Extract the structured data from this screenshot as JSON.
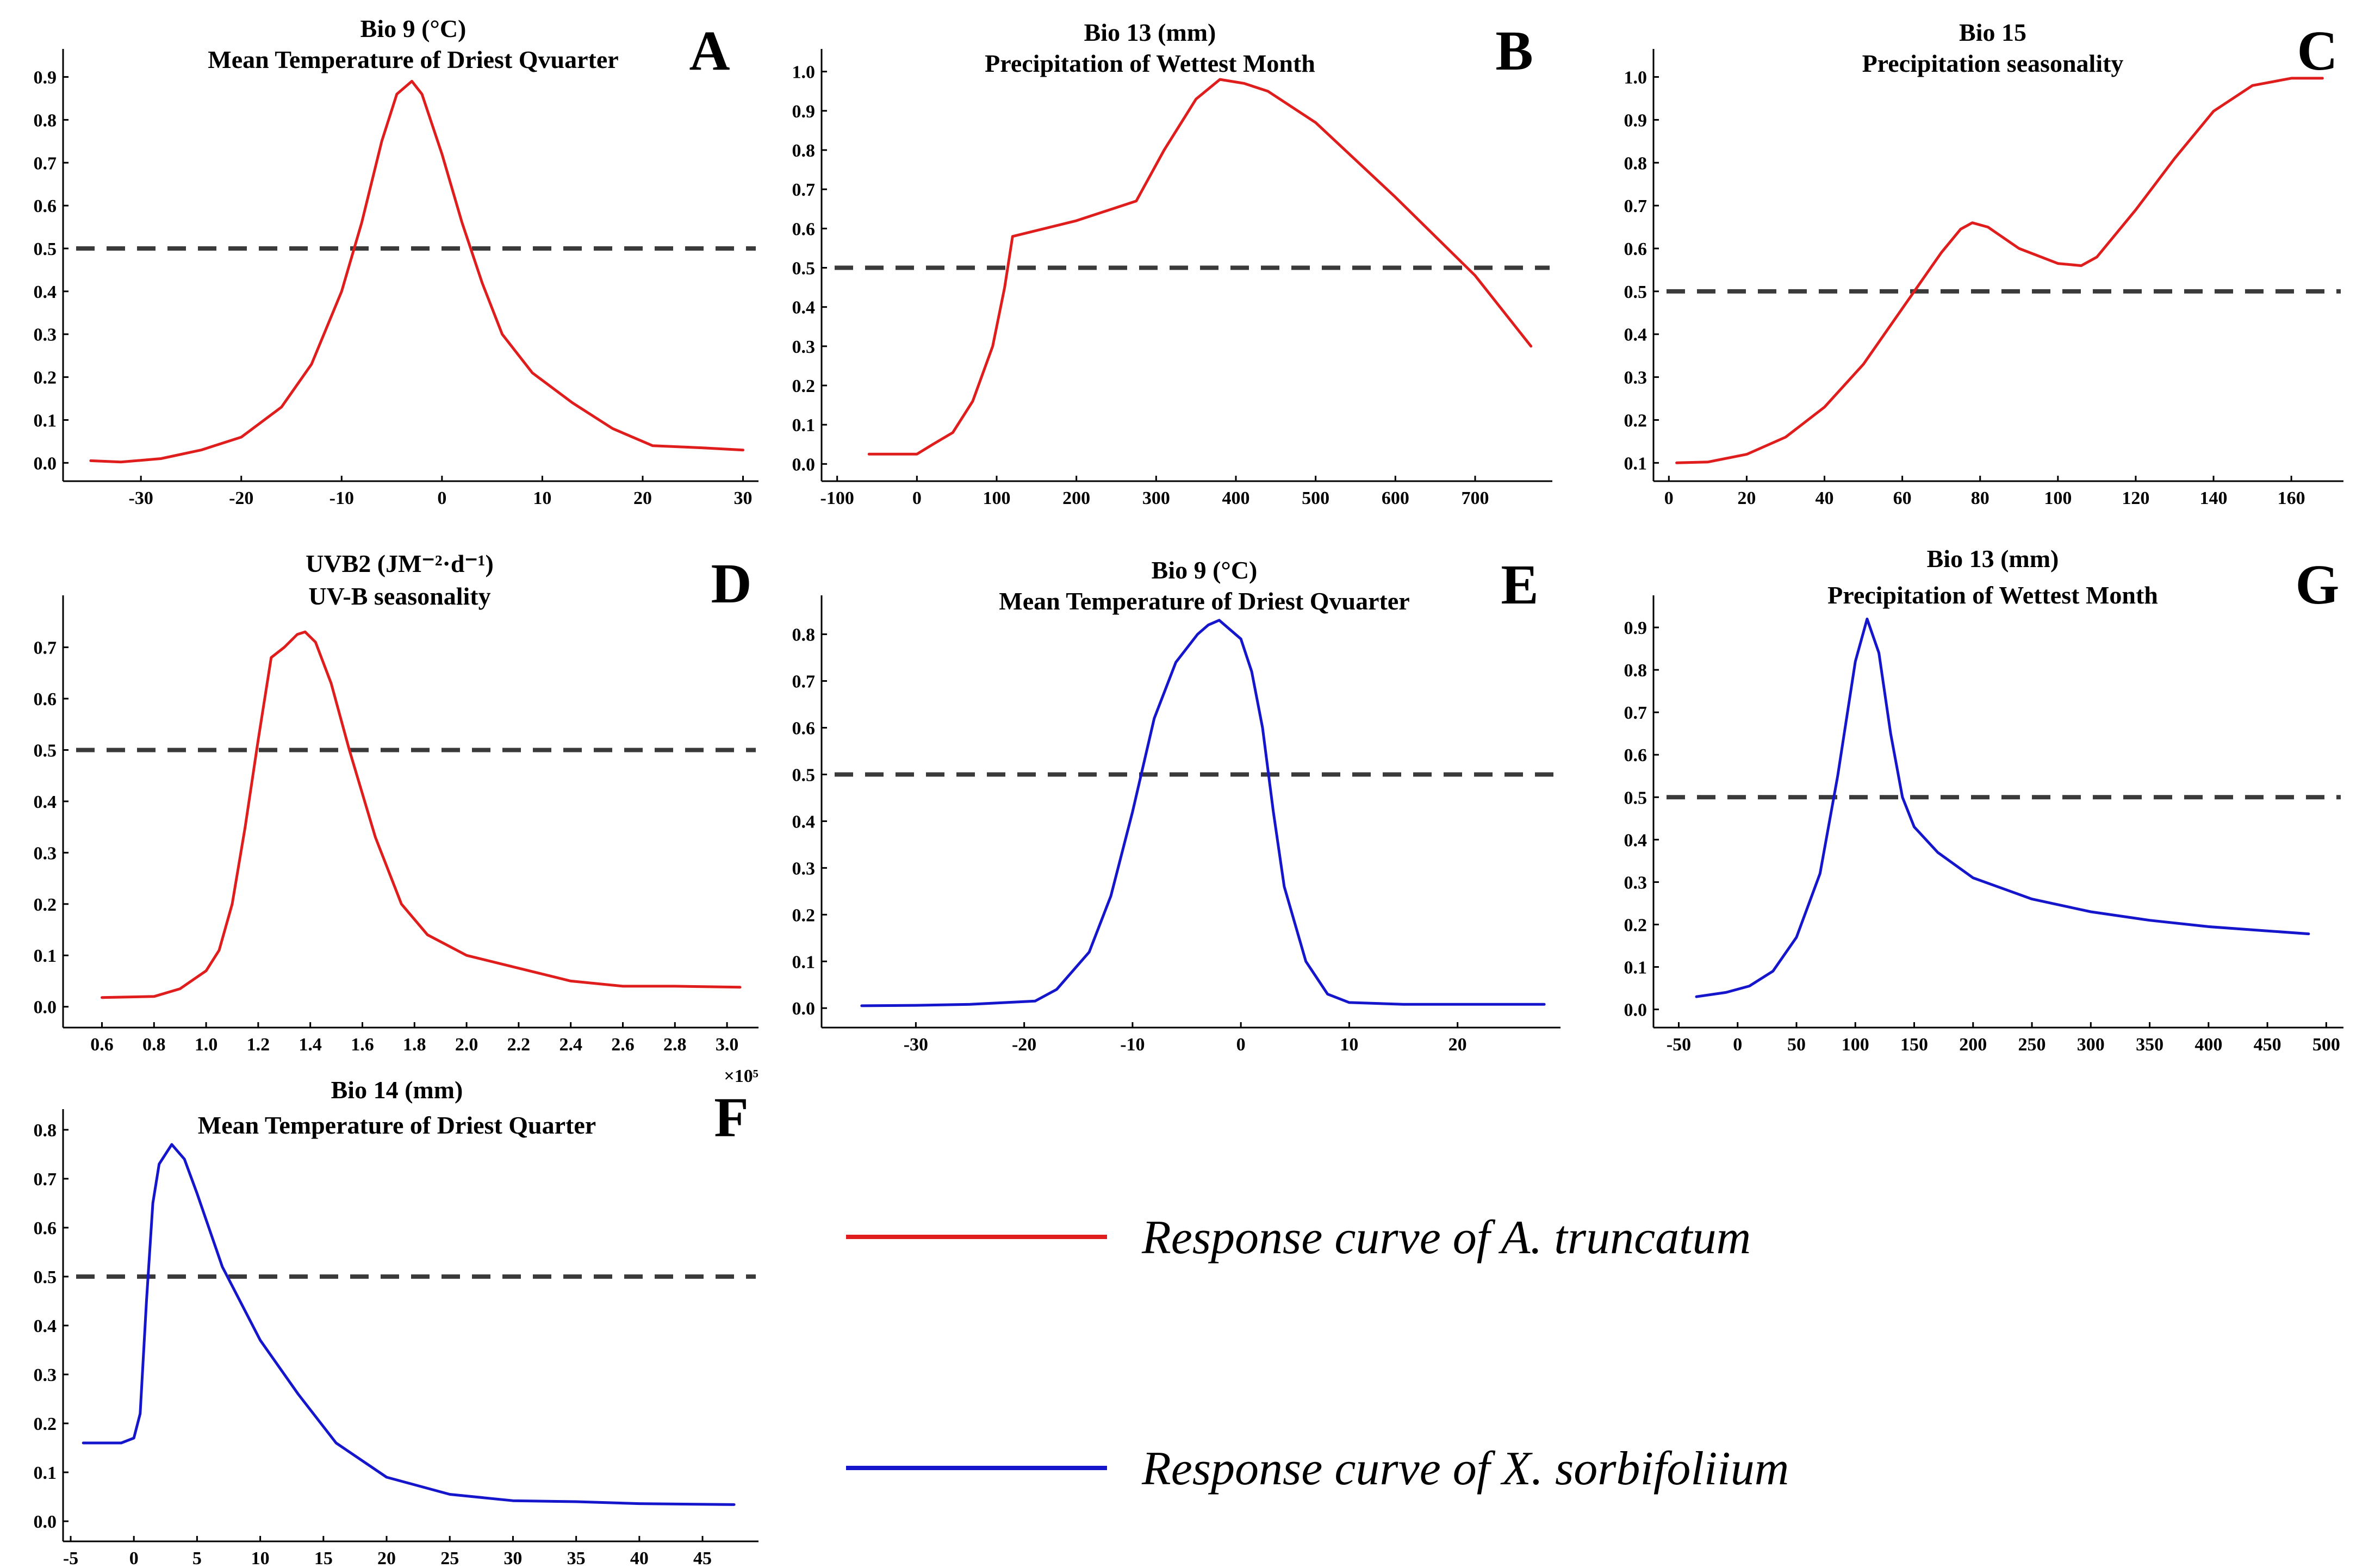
{
  "colors": {
    "truncatum": "#e01d1d",
    "sorbifolium": "#1515cc",
    "threshold": "#3a3a3a"
  },
  "legend": {
    "truncatum_label": "Response curve of A. truncatum",
    "sorbifolium_label": "Response curve of X. sorbifoliium"
  },
  "chart_data": [
    {
      "id": "A",
      "type": "line",
      "letter": "A",
      "title_line1": "Bio 9 (°C)",
      "title_line2": "Mean Temperature of Driest Qvuarter",
      "species": "truncatum",
      "threshold": 0.5,
      "xlim": [
        -37,
        31
      ],
      "ylim": [
        -0.03,
        0.94
      ],
      "xticks": [
        -30,
        -20,
        -10,
        0,
        10,
        20,
        30
      ],
      "yticks": [
        0.0,
        0.1,
        0.2,
        0.3,
        0.4,
        0.5,
        0.6,
        0.7,
        0.8,
        0.9
      ],
      "x": [
        -35,
        -32,
        -28,
        -24,
        -20,
        -16,
        -13,
        -10,
        -8,
        -6,
        -4.5,
        -3,
        -2,
        0,
        2,
        4,
        6,
        9,
        13,
        17,
        21,
        26,
        30
      ],
      "y": [
        0.005,
        0.002,
        0.01,
        0.03,
        0.06,
        0.13,
        0.23,
        0.4,
        0.56,
        0.75,
        0.86,
        0.89,
        0.86,
        0.72,
        0.56,
        0.42,
        0.3,
        0.21,
        0.14,
        0.08,
        0.04,
        0.035,
        0.03
      ]
    },
    {
      "id": "B",
      "type": "line",
      "letter": "B",
      "title_line1": "Bio 13  (mm)",
      "title_line2": "Precipitation of Wettest Month",
      "species": "truncatum",
      "threshold": 0.5,
      "xlim": [
        -110,
        790
      ],
      "ylim": [
        -0.03,
        1.03
      ],
      "xticks": [
        -100,
        0,
        100,
        200,
        300,
        400,
        500,
        600,
        700
      ],
      "yticks": [
        0.0,
        0.1,
        0.2,
        0.3,
        0.4,
        0.5,
        0.6,
        0.7,
        0.8,
        0.9,
        1.0
      ],
      "x": [
        -60,
        0,
        20,
        45,
        70,
        95,
        110,
        120,
        200,
        275,
        310,
        350,
        380,
        410,
        440,
        500,
        600,
        700,
        770
      ],
      "y": [
        0.025,
        0.025,
        0.05,
        0.08,
        0.16,
        0.3,
        0.45,
        0.58,
        0.62,
        0.67,
        0.8,
        0.93,
        0.98,
        0.97,
        0.95,
        0.87,
        0.68,
        0.48,
        0.3
      ]
    },
    {
      "id": "C",
      "type": "line",
      "letter": "C",
      "title_line1": "Bio 15",
      "title_line2": "Precipitation seasonality",
      "species": "truncatum",
      "threshold": 0.5,
      "xlim": [
        -2,
        172
      ],
      "ylim": [
        0.07,
        1.04
      ],
      "xticks": [
        0,
        20,
        40,
        60,
        80,
        100,
        120,
        140,
        160
      ],
      "yticks": [
        0.1,
        0.2,
        0.3,
        0.4,
        0.5,
        0.6,
        0.7,
        0.8,
        0.9,
        1.0
      ],
      "x": [
        2,
        10,
        20,
        30,
        40,
        50,
        60,
        70,
        75,
        78,
        82,
        90,
        100,
        106,
        110,
        120,
        130,
        140,
        150,
        160,
        168
      ],
      "y": [
        0.1,
        0.102,
        0.12,
        0.16,
        0.23,
        0.33,
        0.46,
        0.59,
        0.645,
        0.66,
        0.65,
        0.6,
        0.565,
        0.56,
        0.58,
        0.69,
        0.81,
        0.92,
        0.98,
        0.997,
        0.997
      ]
    },
    {
      "id": "D",
      "type": "line",
      "letter": "D",
      "title_line1": "UVB2 (JM⁻²·d⁻¹)",
      "title_line2": "UV-B seasonality",
      "species": "truncatum",
      "threshold": 0.5,
      "xlim": [
        0.48,
        3.1
      ],
      "ylim": [
        -0.03,
        0.78
      ],
      "xticks": [
        0.6,
        0.8,
        1.0,
        1.2,
        1.4,
        1.6,
        1.8,
        2.0,
        2.2,
        2.4,
        2.6,
        2.8,
        3.0
      ],
      "xtick_labels": [
        "0.6",
        "0.8",
        "1.0",
        "1.2",
        "1.4",
        "1.6",
        "1.8",
        "2.0",
        "2.2",
        "2.4",
        "2.6",
        "2.8",
        "3.0"
      ],
      "x_multiplier": "×10⁵",
      "yticks": [
        0.0,
        0.1,
        0.2,
        0.3,
        0.4,
        0.5,
        0.6,
        0.7
      ],
      "x": [
        0.6,
        0.8,
        0.9,
        1.0,
        1.05,
        1.1,
        1.15,
        1.2,
        1.25,
        1.3,
        1.35,
        1.38,
        1.42,
        1.48,
        1.55,
        1.65,
        1.75,
        1.85,
        2.0,
        2.2,
        2.4,
        2.6,
        2.8,
        3.05
      ],
      "y": [
        0.018,
        0.02,
        0.035,
        0.07,
        0.11,
        0.2,
        0.35,
        0.52,
        0.68,
        0.7,
        0.725,
        0.73,
        0.71,
        0.63,
        0.5,
        0.33,
        0.2,
        0.14,
        0.1,
        0.075,
        0.05,
        0.04,
        0.04,
        0.038
      ]
    },
    {
      "id": "E",
      "type": "line",
      "letter": "E",
      "title_line1": "Bio 9 (°C)",
      "title_line2": "Mean Temperature of Driest Qvuarter",
      "species": "sorbifolium",
      "threshold": 0.5,
      "xlim": [
        -38,
        29
      ],
      "ylim": [
        -0.03,
        0.86
      ],
      "xticks": [
        -30,
        -20,
        -10,
        0,
        10,
        20
      ],
      "yticks": [
        0.0,
        0.1,
        0.2,
        0.3,
        0.4,
        0.5,
        0.6,
        0.7,
        0.8
      ],
      "x": [
        -35,
        -30,
        -25,
        -19,
        -17,
        -14,
        -12,
        -10,
        -8,
        -6,
        -4,
        -3,
        -2,
        0,
        1,
        2,
        3,
        4,
        6,
        8,
        10,
        15,
        20,
        28
      ],
      "y": [
        0.005,
        0.006,
        0.008,
        0.015,
        0.04,
        0.12,
        0.24,
        0.42,
        0.62,
        0.74,
        0.8,
        0.82,
        0.83,
        0.79,
        0.72,
        0.6,
        0.42,
        0.26,
        0.1,
        0.03,
        0.012,
        0.008,
        0.008,
        0.008
      ]
    },
    {
      "id": "G",
      "type": "line",
      "letter": "G",
      "title_line1": "Bio 13 (mm)",
      "title_line2": "Precipitation of Wettest Month",
      "species": "sorbifolium",
      "threshold": 0.5,
      "xlim": [
        -65,
        510
      ],
      "ylim": [
        -0.03,
        0.95
      ],
      "xticks": [
        -50,
        0,
        50,
        100,
        150,
        200,
        250,
        300,
        350,
        400,
        450,
        500
      ],
      "yticks": [
        0.0,
        0.1,
        0.2,
        0.3,
        0.4,
        0.5,
        0.6,
        0.7,
        0.8,
        0.9
      ],
      "x": [
        -35,
        -10,
        10,
        30,
        50,
        70,
        85,
        100,
        110,
        120,
        130,
        140,
        150,
        170,
        200,
        250,
        300,
        350,
        400,
        450,
        485
      ],
      "y": [
        0.03,
        0.04,
        0.055,
        0.09,
        0.17,
        0.32,
        0.55,
        0.82,
        0.92,
        0.84,
        0.65,
        0.5,
        0.43,
        0.37,
        0.31,
        0.26,
        0.23,
        0.21,
        0.195,
        0.185,
        0.178
      ]
    },
    {
      "id": "F",
      "type": "line",
      "letter": "F",
      "title_line1": "Bio 14 (mm)",
      "title_line2": "Mean Temperature of Driest Quarter",
      "species": "sorbifolium",
      "threshold": 0.5,
      "xlim": [
        -5,
        49
      ],
      "ylim": [
        -0.03,
        0.82
      ],
      "xticks": [
        -5,
        0,
        5,
        10,
        15,
        20,
        25,
        30,
        35,
        40,
        45
      ],
      "yticks": [
        0.0,
        0.1,
        0.2,
        0.3,
        0.4,
        0.5,
        0.6,
        0.7,
        0.8
      ],
      "x": [
        -4,
        -1,
        0,
        0.5,
        1,
        1.5,
        2,
        3,
        4,
        5,
        7,
        10,
        13,
        16,
        20,
        25,
        30,
        35,
        40,
        47.5
      ],
      "y": [
        0.16,
        0.16,
        0.17,
        0.22,
        0.45,
        0.65,
        0.73,
        0.77,
        0.74,
        0.67,
        0.52,
        0.37,
        0.26,
        0.16,
        0.09,
        0.055,
        0.042,
        0.04,
        0.036,
        0.034
      ]
    }
  ]
}
